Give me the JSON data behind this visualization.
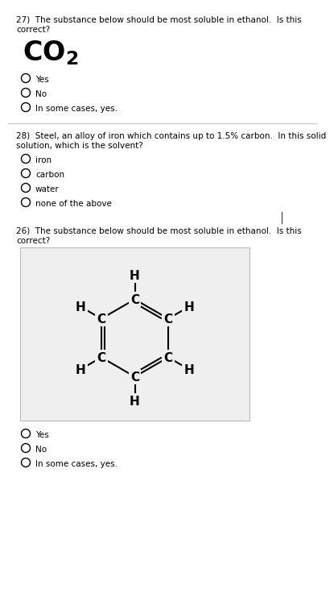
{
  "bg_color": "#ffffff",
  "section_divider_color": "#cccccc",
  "q27_text_line1": "27)  The substance below should be most soluble in ethanol.  Is this",
  "q27_text_line2": "correct?",
  "q27_options": [
    "Yes",
    "No",
    "In some cases, yes."
  ],
  "q28_text_line1": "28)  Steel, an alloy of iron which contains up to 1.5% carbon.  In this solid",
  "q28_text_line2": "solution, which is the solvent?",
  "q28_options": [
    "iron",
    "carbon",
    "water",
    "none of the above"
  ],
  "q26_text_line1": "26)  The substance below should be most soluble in ethanol.  Is this",
  "q26_text_line2": "correct?",
  "q26_options": [
    "Yes",
    "No",
    "In some cases, yes."
  ],
  "radio_color": "#000000",
  "text_color": "#000000",
  "font_size_question": 7.5,
  "font_size_option": 7.5,
  "font_size_formula": 24,
  "benzene_bg": "#efefef",
  "struct_font_size": 11
}
